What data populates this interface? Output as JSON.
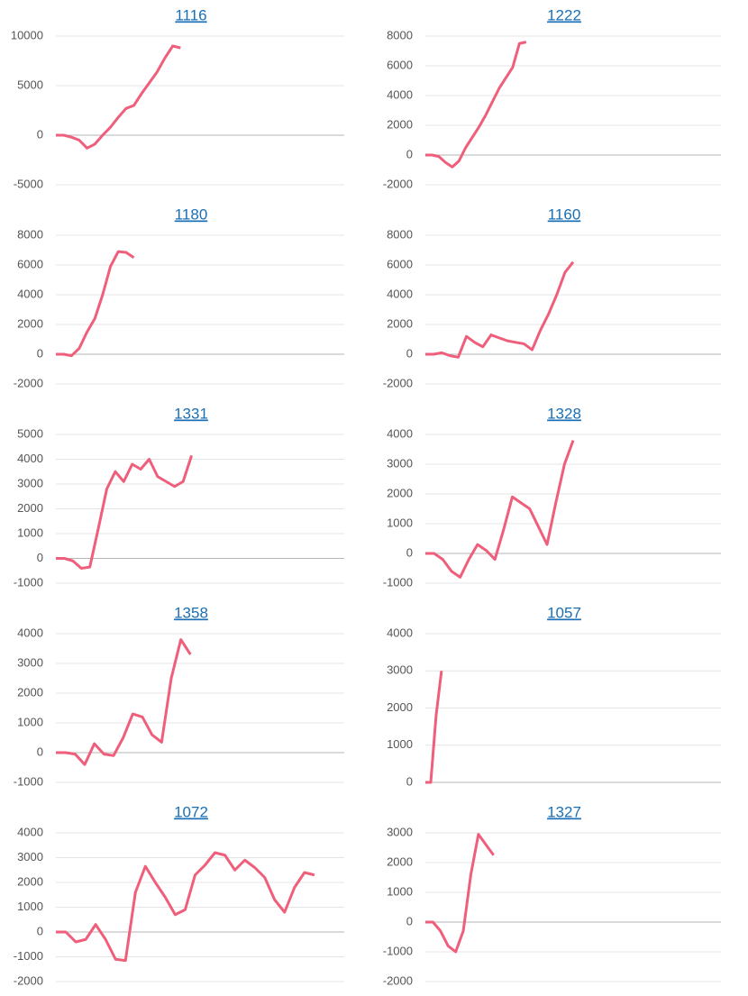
{
  "chart_data": [
    {
      "type": "line",
      "title": "1116",
      "x": [
        0,
        1,
        2,
        3,
        4,
        5,
        6,
        7,
        8,
        9,
        10,
        11,
        12,
        13,
        14,
        15,
        16
      ],
      "xlim": [
        0,
        37
      ],
      "values": [
        0,
        0,
        -200,
        -500,
        -1300,
        -900,
        0,
        800,
        1800,
        2700,
        3000,
        4200,
        5300,
        6400,
        7800,
        9000,
        8800
      ],
      "color": "#ef5e7a",
      "ylim": [
        -5000,
        10000
      ],
      "yticks": [
        -5000,
        0,
        5000,
        10000
      ],
      "grid": true
    },
    {
      "type": "line",
      "title": "1222",
      "x": [
        0,
        1,
        2,
        3,
        4,
        5,
        6,
        7,
        8,
        9,
        10,
        11,
        12,
        13,
        14,
        15
      ],
      "xlim": [
        0,
        44
      ],
      "values": [
        0,
        0,
        -100,
        -500,
        -800,
        -400,
        500,
        1200,
        1900,
        2700,
        3600,
        4500,
        5200,
        5900,
        7500,
        7600
      ],
      "color": "#ef5e7a",
      "ylim": [
        -2000,
        8000
      ],
      "yticks": [
        -2000,
        0,
        2000,
        4000,
        6000,
        8000
      ],
      "grid": true
    },
    {
      "type": "line",
      "title": "1180",
      "x": [
        0,
        1,
        2,
        3,
        4,
        5,
        6,
        7,
        8,
        9,
        10
      ],
      "xlim": [
        0,
        37
      ],
      "values": [
        0,
        0,
        -100,
        400,
        1500,
        2400,
        4000,
        5900,
        6900,
        6850,
        6500
      ],
      "color": "#ef5e7a",
      "ylim": [
        -2000,
        8000
      ],
      "yticks": [
        -2000,
        0,
        2000,
        4000,
        6000,
        8000
      ],
      "grid": true
    },
    {
      "type": "line",
      "title": "1160",
      "x": [
        0,
        1,
        2,
        3,
        4,
        5,
        6,
        7,
        8,
        9,
        10,
        11,
        12,
        13,
        14,
        15,
        16,
        17,
        18
      ],
      "xlim": [
        0,
        36
      ],
      "values": [
        0,
        0,
        100,
        -100,
        -200,
        1200,
        800,
        500,
        1300,
        1100,
        900,
        800,
        700,
        300,
        1600,
        2700,
        4000,
        5500,
        6200
      ],
      "color": "#ef5e7a",
      "ylim": [
        -2000,
        8000
      ],
      "yticks": [
        -2000,
        0,
        2000,
        4000,
        6000,
        8000
      ],
      "grid": true
    },
    {
      "type": "line",
      "title": "1331",
      "x": [
        0,
        1,
        2,
        3,
        4,
        5,
        6,
        7,
        8,
        9,
        10,
        11,
        12,
        13,
        14,
        15,
        16
      ],
      "xlim": [
        0,
        34
      ],
      "values": [
        0,
        0,
        -100,
        -400,
        -350,
        1200,
        2800,
        3500,
        3100,
        3800,
        3600,
        4000,
        3300,
        3100,
        2900,
        3100,
        4150
      ],
      "color": "#ef5e7a",
      "ylim": [
        -1000,
        5000
      ],
      "yticks": [
        -1000,
        0,
        1000,
        2000,
        3000,
        4000,
        5000
      ],
      "grid": true
    },
    {
      "type": "line",
      "title": "1328",
      "x": [
        0,
        1,
        2,
        3,
        4,
        5,
        6,
        7,
        8,
        9,
        10,
        11,
        12,
        13,
        14,
        15,
        16,
        17
      ],
      "xlim": [
        0,
        34
      ],
      "values": [
        0,
        0,
        -200,
        -600,
        -800,
        -200,
        300,
        100,
        -200,
        800,
        1900,
        1700,
        1500,
        900,
        300,
        1700,
        3000,
        3800
      ],
      "color": "#ef5e7a",
      "ylim": [
        -1000,
        4000
      ],
      "yticks": [
        -1000,
        0,
        1000,
        2000,
        3000,
        4000
      ],
      "grid": true
    },
    {
      "type": "line",
      "title": "1358",
      "x": [
        0,
        1,
        2,
        3,
        4,
        5,
        6,
        7,
        8,
        9,
        10,
        11,
        12,
        13,
        14
      ],
      "xlim": [
        0,
        30
      ],
      "values": [
        0,
        0,
        -50,
        -400,
        300,
        -50,
        -100,
        500,
        1300,
        1200,
        600,
        350,
        2500,
        3800,
        3300
      ],
      "color": "#ef5e7a",
      "ylim": [
        -1000,
        4000
      ],
      "yticks": [
        -1000,
        0,
        1000,
        2000,
        3000,
        4000
      ],
      "grid": true
    },
    {
      "type": "line",
      "title": "1057",
      "x": [
        0,
        1,
        2,
        3
      ],
      "xlim": [
        0,
        55
      ],
      "values": [
        0,
        0,
        1800,
        3000
      ],
      "color": "#ef5e7a",
      "ylim": [
        0,
        4000
      ],
      "yticks": [
        0,
        1000,
        2000,
        3000,
        4000
      ],
      "grid": true
    },
    {
      "type": "line",
      "title": "1072",
      "x": [
        0,
        1,
        2,
        3,
        4,
        5,
        6,
        7,
        8,
        9,
        10,
        11,
        12,
        13,
        14,
        15,
        16,
        17,
        18,
        19,
        20,
        21,
        22,
        23,
        24,
        25,
        26
      ],
      "xlim": [
        0,
        29
      ],
      "values": [
        0,
        0,
        -400,
        -300,
        300,
        -300,
        -1100,
        -1150,
        1600,
        2650,
        2000,
        1400,
        700,
        900,
        2300,
        2700,
        3200,
        3100,
        2500,
        2900,
        2600,
        2200,
        1300,
        800,
        1800,
        2400,
        2300
      ],
      "color": "#ef5e7a",
      "ylim": [
        -2000,
        4000
      ],
      "yticks": [
        -2000,
        -1000,
        0,
        1000,
        2000,
        3000,
        4000
      ],
      "grid": true
    },
    {
      "type": "line",
      "title": "1327",
      "x": [
        0,
        1,
        2,
        3,
        4,
        5,
        6,
        7,
        8,
        9
      ],
      "xlim": [
        0,
        39
      ],
      "values": [
        0,
        0,
        -300,
        -800,
        -1000,
        -300,
        1600,
        2950,
        2600,
        2250
      ],
      "color": "#ef5e7a",
      "ylim": [
        -2000,
        3000
      ],
      "yticks": [
        -2000,
        -1000,
        0,
        1000,
        2000,
        3000
      ],
      "grid": true
    }
  ]
}
